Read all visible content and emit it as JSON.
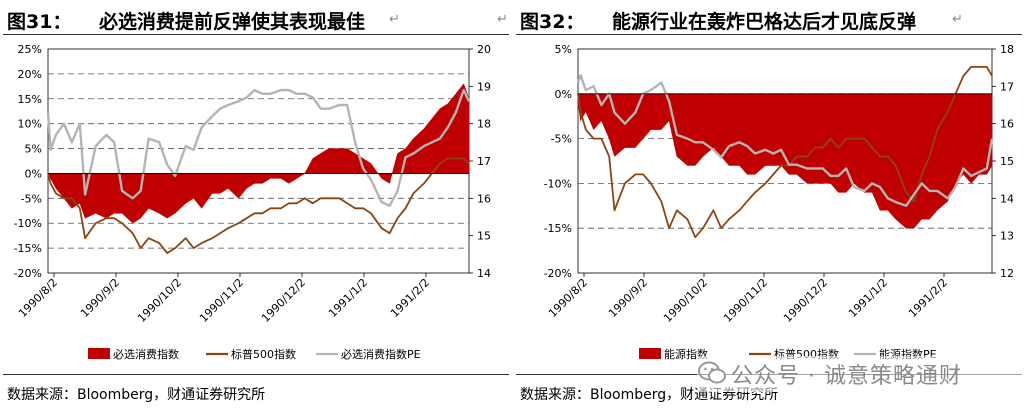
{
  "colors": {
    "fill": "#c00000",
    "index": "#8b4513",
    "pe": "#b4b4b4",
    "grid": "#555555"
  },
  "left_panel": {
    "title_number": "图31：",
    "title_text": "必选消费提前反弹使其表现最佳",
    "source": "数据来源：Bloomberg，财通证券研究所"
  },
  "right_panel": {
    "title_number": "图32：",
    "title_text": "能源行业在轰炸巴格达后才见底反弹",
    "source": "数据来源：Bloomberg，财通证券研究所"
  },
  "watermark": {
    "text": "公众号 · 诚意策略通财",
    "icon": "wechat-icon"
  },
  "chart_data": [
    {
      "type": "area",
      "x_ticks": [
        "1990/8/2",
        "1990/9/2",
        "1990/10/2",
        "1990/11/2",
        "1990/12/2",
        "1991/1/2",
        "1991/2/2"
      ],
      "y_left": {
        "ticks": [
          "25%",
          "20%",
          "15%",
          "10%",
          "5%",
          "0%",
          "-5%",
          "-10%",
          "-15%",
          "-20%"
        ],
        "range": [
          -20,
          25
        ],
        "unit": "%"
      },
      "y_right": {
        "ticks": [
          "20",
          "19",
          "18",
          "17",
          "16",
          "15",
          "14"
        ],
        "range": [
          14,
          20
        ]
      },
      "grid": "dashed horizontal",
      "legend": "bottom",
      "series": [
        {
          "name": "必选消费指数",
          "kind": "area",
          "axis": "left",
          "x": [
            0,
            1,
            3,
            6,
            9,
            12,
            14,
            18,
            22,
            25,
            28,
            32,
            35,
            38,
            42,
            45,
            48,
            52,
            55,
            58,
            62,
            65,
            68,
            72,
            75,
            78,
            81,
            84,
            88,
            91,
            94,
            97,
            100,
            103,
            106,
            110,
            113,
            116,
            119,
            122,
            126,
            129,
            132,
            135,
            138,
            142,
            145,
            148,
            151,
            154,
            157,
            159
          ],
          "values": [
            0,
            -1,
            -3,
            -5,
            -7,
            -6,
            -9,
            -8,
            -9,
            -8,
            -8,
            -10,
            -9,
            -7,
            -8,
            -9,
            -8,
            -6,
            -5,
            -7,
            -4,
            -4,
            -3,
            -5,
            -3,
            -2,
            -2,
            -1,
            -1,
            -2,
            -1,
            0,
            3,
            4,
            5,
            5,
            5,
            4,
            3,
            2,
            -1,
            -2,
            4,
            5,
            7,
            9,
            11,
            13,
            14,
            16,
            18,
            15
          ]
        },
        {
          "name": "标普500指数",
          "kind": "line",
          "axis": "left",
          "x": [
            0,
            1,
            3,
            6,
            9,
            12,
            14,
            18,
            22,
            25,
            28,
            32,
            35,
            38,
            42,
            45,
            48,
            52,
            55,
            58,
            62,
            65,
            68,
            72,
            75,
            78,
            81,
            84,
            88,
            91,
            94,
            97,
            100,
            103,
            106,
            110,
            113,
            116,
            119,
            122,
            126,
            129,
            132,
            135,
            138,
            142,
            145,
            148,
            151,
            154,
            157,
            159
          ],
          "values": [
            0,
            -2,
            -4,
            -5,
            -5,
            -7,
            -13,
            -10,
            -9,
            -9,
            -10,
            -12,
            -15,
            -13,
            -14,
            -16,
            -15,
            -13,
            -15,
            -14,
            -13,
            -12,
            -11,
            -10,
            -9,
            -8,
            -8,
            -7,
            -7,
            -6,
            -6,
            -5,
            -6,
            -5,
            -5,
            -5,
            -6,
            -7,
            -7,
            -8,
            -11,
            -12,
            -9,
            -7,
            -4,
            -2,
            0,
            2,
            3,
            3,
            3,
            2
          ]
        },
        {
          "name": "必选消费指数PE",
          "kind": "line",
          "axis": "right",
          "x": [
            0,
            1,
            3,
            6,
            9,
            12,
            14,
            18,
            22,
            25,
            28,
            32,
            35,
            38,
            42,
            45,
            48,
            52,
            55,
            58,
            62,
            65,
            68,
            72,
            75,
            78,
            81,
            84,
            88,
            91,
            94,
            97,
            100,
            103,
            106,
            110,
            113,
            116,
            119,
            122,
            126,
            129,
            132,
            135,
            138,
            142,
            145,
            148,
            151,
            154,
            157,
            159
          ],
          "values": [
            18.3,
            17.3,
            17.7,
            18.0,
            17.5,
            18.0,
            16.1,
            17.4,
            17.7,
            17.5,
            16.2,
            16.0,
            16.2,
            17.6,
            17.5,
            16.9,
            16.6,
            17.4,
            17.3,
            17.9,
            18.2,
            18.4,
            18.5,
            18.6,
            18.7,
            18.9,
            18.8,
            18.8,
            18.9,
            18.9,
            18.8,
            18.8,
            18.7,
            18.4,
            18.4,
            18.5,
            18.5,
            17.5,
            16.8,
            16.5,
            15.9,
            15.8,
            16.2,
            17.1,
            17.2,
            17.4,
            17.5,
            17.6,
            17.9,
            18.3,
            18.9,
            18.6
          ]
        }
      ]
    },
    {
      "type": "area",
      "x_ticks": [
        "1990/8/2",
        "1990/9/2",
        "1990/10/2",
        "1990/11/2",
        "1990/12/2",
        "1991/1/2",
        "1991/2/2"
      ],
      "y_left": {
        "ticks": [
          "5%",
          "0%",
          "-5%",
          "-10%",
          "-15%",
          "-20%"
        ],
        "range": [
          -20,
          5
        ],
        "unit": "%"
      },
      "y_right": {
        "ticks": [
          "18",
          "17",
          "16",
          "15",
          "14",
          "13",
          "12"
        ],
        "range": [
          12,
          18
        ]
      },
      "grid": "dashed horizontal",
      "legend": "bottom",
      "series": [
        {
          "name": "能源指数",
          "kind": "area",
          "axis": "left",
          "x": [
            0,
            1,
            3,
            6,
            9,
            12,
            14,
            18,
            22,
            25,
            28,
            32,
            35,
            38,
            42,
            45,
            48,
            52,
            55,
            58,
            62,
            65,
            68,
            72,
            75,
            78,
            81,
            84,
            88,
            91,
            94,
            97,
            100,
            103,
            106,
            110,
            113,
            116,
            119,
            122,
            126,
            129,
            132,
            135,
            138,
            142,
            145,
            148,
            151,
            154,
            157,
            159
          ],
          "values": [
            -1,
            -3,
            -2,
            -4,
            -3,
            -5,
            -7,
            -6,
            -6,
            -5,
            -4,
            -4,
            -3,
            -7,
            -8,
            -8,
            -7,
            -6,
            -7,
            -8,
            -8,
            -9,
            -9,
            -8,
            -8,
            -8,
            -9,
            -9,
            -10,
            -10,
            -10,
            -10,
            -11,
            -11,
            -10,
            -11,
            -11,
            -13,
            -13,
            -14,
            -15,
            -15,
            -14,
            -14,
            -13,
            -12,
            -10,
            -9,
            -10,
            -9,
            -9,
            -8
          ]
        },
        {
          "name": "标普500指数",
          "kind": "line",
          "axis": "left",
          "x": [
            0,
            1,
            3,
            6,
            9,
            12,
            14,
            18,
            22,
            25,
            28,
            32,
            35,
            38,
            42,
            45,
            48,
            52,
            55,
            58,
            62,
            65,
            68,
            72,
            75,
            78,
            81,
            84,
            88,
            91,
            94,
            97,
            100,
            103,
            106,
            110,
            113,
            116,
            119,
            122,
            126,
            129,
            132,
            135,
            138,
            142,
            145,
            148,
            151,
            154,
            157,
            159
          ],
          "values": [
            0,
            -2,
            -4,
            -5,
            -5,
            -7,
            -13,
            -10,
            -9,
            -9,
            -10,
            -12,
            -15,
            -13,
            -14,
            -16,
            -15,
            -13,
            -15,
            -14,
            -13,
            -12,
            -11,
            -10,
            -9,
            -8,
            -8,
            -7,
            -7,
            -6,
            -6,
            -5,
            -6,
            -5,
            -5,
            -5,
            -6,
            -7,
            -7,
            -8,
            -11,
            -12,
            -9,
            -7,
            -4,
            -2,
            0,
            2,
            3,
            3,
            3,
            2
          ]
        },
        {
          "name": "能源指数PE",
          "kind": "line",
          "axis": "right",
          "x": [
            0,
            1,
            3,
            6,
            9,
            12,
            14,
            18,
            22,
            25,
            28,
            32,
            35,
            38,
            42,
            45,
            48,
            52,
            55,
            58,
            62,
            65,
            68,
            72,
            75,
            78,
            81,
            84,
            88,
            91,
            94,
            97,
            100,
            103,
            106,
            110,
            113,
            116,
            119,
            122,
            126,
            129,
            132,
            135,
            138,
            142,
            145,
            148,
            151,
            154,
            157,
            159
          ],
          "values": [
            17.1,
            17.3,
            16.9,
            17.0,
            16.5,
            16.8,
            16.3,
            16.0,
            16.3,
            16.8,
            16.9,
            17.1,
            16.6,
            15.7,
            15.6,
            15.5,
            15.5,
            15.3,
            15.1,
            15.4,
            15.5,
            15.4,
            15.2,
            15.3,
            15.2,
            15.3,
            14.9,
            14.9,
            14.8,
            14.8,
            14.8,
            14.6,
            14.6,
            14.8,
            14.3,
            14.2,
            14.4,
            14.3,
            14.0,
            13.9,
            13.8,
            14.1,
            14.4,
            14.2,
            14.2,
            14.0,
            14.3,
            14.8,
            14.6,
            14.7,
            14.8,
            15.6
          ]
        }
      ]
    }
  ]
}
